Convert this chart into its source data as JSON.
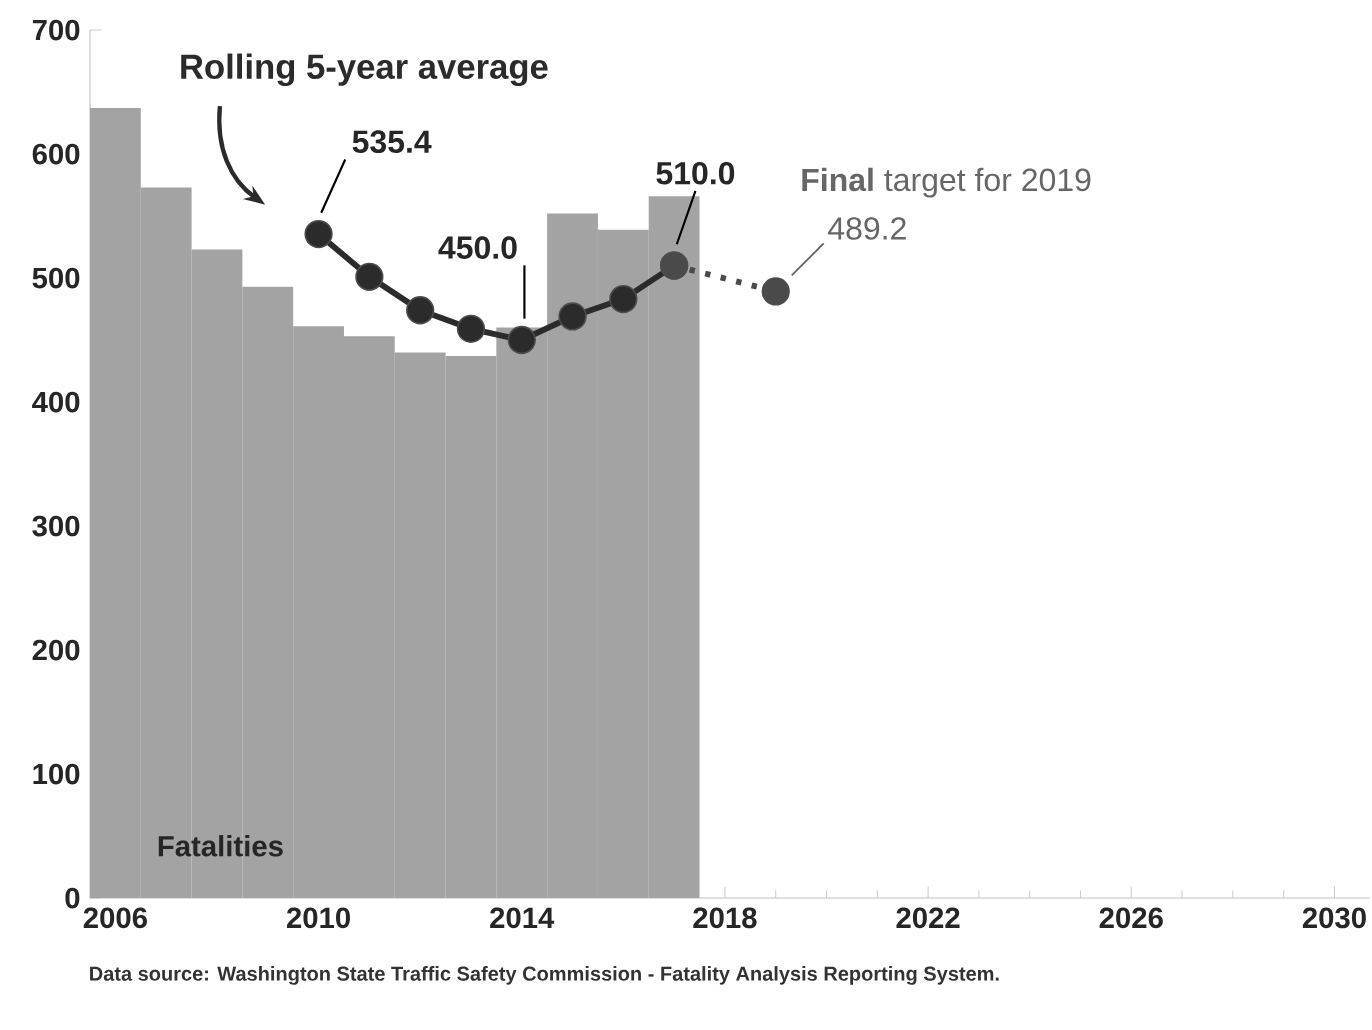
{
  "chart_data": {
    "type": "bar",
    "x": [
      2006,
      2007,
      2008,
      2009,
      2010,
      2011,
      2012,
      2013,
      2014,
      2015,
      2016,
      2017
    ],
    "xlim": [
      2005.5,
      2030.7
    ],
    "xticks": [
      2006,
      2010,
      2014,
      2018,
      2022,
      2026,
      2030
    ],
    "ylim": [
      0,
      700
    ],
    "yticks": [
      0,
      100,
      200,
      300,
      400,
      500,
      600,
      700
    ],
    "grid": false,
    "annotations": [
      "**Final** target for 2019",
      "Data source: Washington State Traffic Safety Commission - Fatality Analysis Reporting System."
    ],
    "series": [
      {
        "name": "Fatalities",
        "color": "#a3a3a3",
        "values": [
          637,
          573,
          523,
          493,
          461,
          453,
          440,
          437,
          460,
          552,
          539,
          566
        ]
      },
      {
        "name": "Rolling 5-year average",
        "type": "line",
        "color": "#2b2b2b",
        "x": [
          2010,
          2011,
          2012,
          2013,
          2014,
          2015,
          2016,
          2017
        ],
        "values": [
          535.4,
          501,
          474,
          459,
          450.0,
          469,
          483,
          510.0
        ],
        "value_labels": [
          "535.4",
          null,
          null,
          null,
          "450.0",
          null,
          null,
          "510.0"
        ],
        "marker": "circle",
        "line_style": "solid"
      },
      {
        "type": "line",
        "color": "#4a4a4a",
        "x": [
          2017,
          2019
        ],
        "values": [
          510.0,
          489.2
        ],
        "value_labels": [
          null,
          "489.2"
        ],
        "marker": "circle",
        "line_style": "dotted"
      }
    ]
  }
}
